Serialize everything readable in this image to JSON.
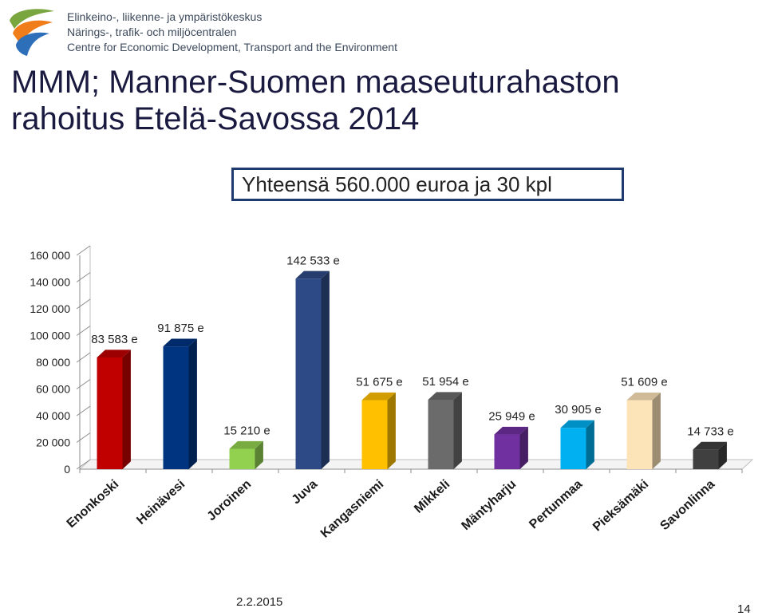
{
  "header": {
    "org_lines": [
      "Elinkeino-, liikenne- ja ympäristökeskus",
      "Närings-, trafik- och miljöcentralen",
      "Centre for Economic Development, Transport and the Environment"
    ],
    "logo_icon": "ely-centre-logo-icon"
  },
  "slide": {
    "title_line1": "MMM; Manner-Suomen maaseuturahaston",
    "title_line2": "rahoitus Etelä-Savossa 2014",
    "total_label": "Yhteensä  560.000 euroa ja 30 kpl",
    "date": "2.2.2015",
    "page": "14"
  },
  "chart_data": {
    "type": "bar",
    "title": "",
    "xlabel": "",
    "ylabel": "",
    "ylim": [
      0,
      160000
    ],
    "yticks": [
      0,
      20000,
      40000,
      60000,
      80000,
      100000,
      120000,
      140000,
      160000
    ],
    "ytick_labels": [
      "0",
      "20 000",
      "40 000",
      "60 000",
      "80 000",
      "100 000",
      "120 000",
      "140 000",
      "160 000"
    ],
    "grid": false,
    "style": "3d-column",
    "categories": [
      "Enonkoski",
      "Heinävesi",
      "Joroinen",
      "Juva",
      "Kangasniemi",
      "Mikkeli",
      "Mäntyharju",
      "Pertunmaa",
      "Pieksämäki",
      "Savonlinna"
    ],
    "values": [
      83583,
      91875,
      15210,
      142533,
      51675,
      51954,
      25949,
      30905,
      51609,
      14733
    ],
    "data_labels": [
      "83 583 e",
      "91 875 e",
      "15 210 e",
      "142 533 e",
      "51 675 e",
      "51 954 e",
      "25 949 e",
      "30 905 e",
      "51 609 e",
      "14 733 e"
    ],
    "colors": [
      "#c00000",
      "#003380",
      "#92d050",
      "#2e4a86",
      "#ffc000",
      "#6b6b6b",
      "#7030a0",
      "#00b0f0",
      "#fce4b8",
      "#404040"
    ]
  }
}
